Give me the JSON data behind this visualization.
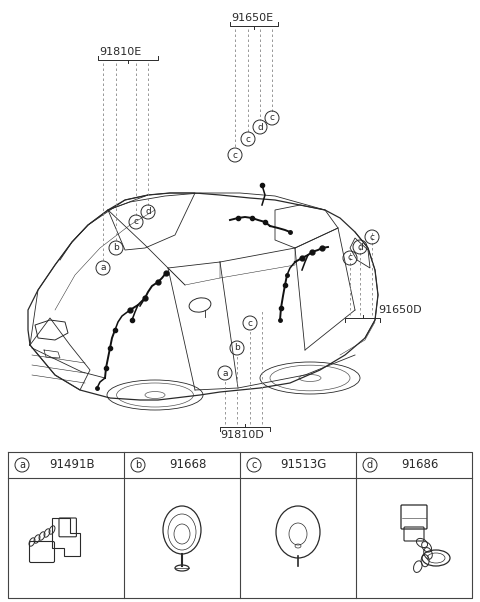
{
  "bg_color": "#ffffff",
  "line_color": "#2a2a2a",
  "light_line": "#555555",
  "figsize": [
    4.8,
    6.02
  ],
  "dpi": 100,
  "part_labels": {
    "top_left": "91810E",
    "top_center": "91650E",
    "bottom_center": "91810D",
    "bottom_right": "91650D"
  },
  "legend_items": [
    {
      "letter": "a",
      "part_num": "91491B"
    },
    {
      "letter": "b",
      "part_num": "91668"
    },
    {
      "letter": "c",
      "part_num": "91513G"
    },
    {
      "letter": "d",
      "part_num": "91686"
    }
  ]
}
